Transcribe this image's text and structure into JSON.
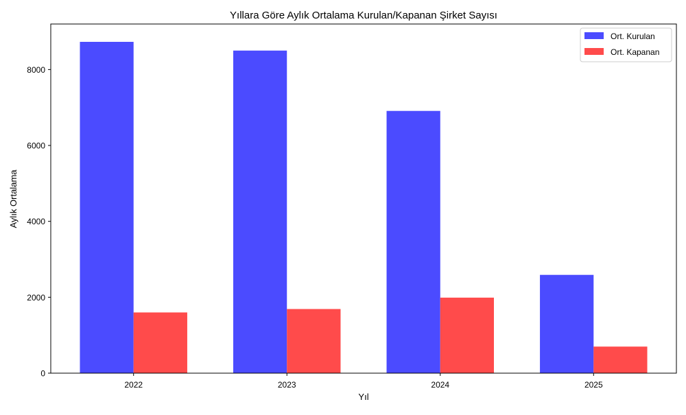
{
  "chart_data": {
    "type": "bar",
    "title": "Yıllara Göre Aylık Ortalama Kurulan/Kapanan Şirket Sayısı",
    "xlabel": "Yıl",
    "ylabel": "Aylık Ortalama",
    "categories": [
      "2022",
      "2023",
      "2024",
      "2025"
    ],
    "series": [
      {
        "name": "Ort. Kurulan",
        "values": [
          8730,
          8500,
          6910,
          2590
        ],
        "color": "#4b4bff"
      },
      {
        "name": "Ort. Kapanan",
        "values": [
          1600,
          1690,
          1990,
          700
        ],
        "color": "#ff4b4b"
      }
    ],
    "ylim": [
      0,
      9200
    ],
    "yticks": [
      0,
      2000,
      4000,
      6000,
      8000
    ],
    "legend_position": "top-right",
    "grid": false
  }
}
